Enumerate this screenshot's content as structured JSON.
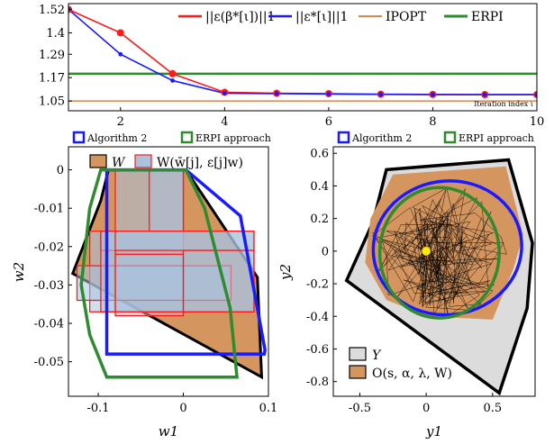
{
  "colors": {
    "red": "#ff1a1a",
    "blue": "#1a1aff",
    "ipopt": "#d9894d",
    "erpi": "#2e8b2e",
    "w_fill": "#d4955f",
    "w_inner_fill": "#a9c3de",
    "y_fill": "#dcdcdc",
    "o_fill": "#d4955f"
  },
  "chart_data": [
    {
      "type": "line",
      "x": [
        1,
        2,
        3,
        4,
        5,
        6,
        7,
        8,
        9,
        10
      ],
      "xticks": [
        "2",
        "4",
        "6",
        "8",
        "10"
      ],
      "yticks": [
        "1.52",
        "1.4",
        "1.29",
        "1.17",
        "1.05"
      ],
      "xlim": [
        1,
        10
      ],
      "ylim": [
        1.0,
        1.55
      ],
      "xlabel": "Iteration index ι",
      "series": [
        {
          "name": "||ε(β*[ι])||1",
          "values": [
            1.52,
            1.4,
            1.19,
            1.095,
            1.09,
            1.088,
            1.085,
            1.084,
            1.083,
            1.083
          ]
        },
        {
          "name": "||ε*[ι]||1",
          "values": [
            1.52,
            1.29,
            1.155,
            1.09,
            1.088,
            1.086,
            1.084,
            1.083,
            1.083,
            1.083
          ]
        },
        {
          "name": "IPOPT",
          "constant": 1.05
        },
        {
          "name": "ERPI",
          "constant": 1.19
        }
      ],
      "legend": [
        "||ε(β*[ι])||1",
        "||ε*[ι]||1",
        "IPOPT",
        "ERPI"
      ]
    },
    {
      "type": "scatter",
      "xlabel": "w1",
      "ylabel": "w2",
      "xlim": [
        -0.135,
        0.1
      ],
      "ylim": [
        -0.059,
        0.006
      ],
      "xticks": [
        "-0.1",
        "0",
        "0.1"
      ],
      "yticks": [
        "0",
        "-0.01",
        "-0.02",
        "-0.03",
        "-0.04",
        "-0.05"
      ],
      "legend_top": [
        "Algorithm 2",
        "ERPI approach"
      ],
      "legend_inner": [
        "W",
        "W(w̄[j], ε[j]w)"
      ],
      "W_polygon": [
        [
          -0.088,
          0.0
        ],
        [
          0.003,
          0.0
        ],
        [
          0.087,
          -0.028
        ],
        [
          0.092,
          -0.054
        ],
        [
          -0.13,
          -0.027
        ],
        [
          -0.097,
          -0.008
        ]
      ],
      "W_boxes": [
        [
          [
            -0.08,
            -0.038
          ],
          [
            0.0,
            0.0
          ]
        ],
        [
          [
            -0.11,
            -0.037
          ],
          [
            0.083,
            -0.016
          ]
        ],
        [
          [
            -0.125,
            -0.034
          ],
          [
            0.056,
            -0.025
          ]
        ],
        [
          [
            -0.08,
            -0.037
          ],
          [
            0.0,
            -0.022
          ]
        ],
        [
          [
            -0.04,
            -0.016
          ],
          [
            0.0,
            0.0
          ]
        ],
        [
          [
            -0.097,
            -0.021
          ],
          [
            0.083,
            -0.016
          ]
        ],
        [
          [
            -0.097,
            -0.037
          ],
          [
            -0.08,
            -0.016
          ]
        ],
        [
          [
            0.0,
            -0.037
          ],
          [
            0.083,
            -0.021
          ]
        ]
      ],
      "alg2_polygon": [
        [
          -0.09,
          0.0
        ],
        [
          0.003,
          0.0
        ],
        [
          0.067,
          -0.012
        ],
        [
          0.096,
          -0.047
        ],
        [
          0.095,
          -0.048
        ],
        [
          -0.09,
          -0.048
        ]
      ],
      "erpi_polygon": [
        [
          -0.097,
          0.0
        ],
        [
          0.003,
          0.0
        ],
        [
          0.025,
          -0.01
        ],
        [
          0.055,
          -0.036
        ],
        [
          0.063,
          -0.054
        ],
        [
          -0.09,
          -0.054
        ],
        [
          -0.11,
          -0.043
        ],
        [
          -0.12,
          -0.03
        ],
        [
          -0.11,
          -0.01
        ]
      ]
    },
    {
      "type": "scatter",
      "xlabel": "y1",
      "ylabel": "y2",
      "xlim": [
        -0.7,
        0.82
      ],
      "ylim": [
        -0.89,
        0.64
      ],
      "xticks": [
        "-0.5",
        "0",
        "0.5"
      ],
      "yticks": [
        "0.6",
        "0.4",
        "0.2",
        "0",
        "-0.2",
        "-0.4",
        "-0.6",
        "-0.8"
      ],
      "legend_top": [
        "Algorithm 2",
        "ERPI approach"
      ],
      "legend_inner": [
        "Y",
        "O(s, α, λ, W)"
      ],
      "Y_polygon": [
        [
          -0.3,
          0.5
        ],
        [
          0.62,
          0.56
        ],
        [
          0.8,
          0.05
        ],
        [
          0.76,
          -0.35
        ],
        [
          0.55,
          -0.87
        ],
        [
          -0.6,
          -0.18
        ],
        [
          -0.4,
          0.18
        ]
      ],
      "O_polygon": [
        [
          -0.25,
          0.47
        ],
        [
          0.6,
          0.52
        ],
        [
          0.73,
          0.1
        ],
        [
          0.66,
          -0.1
        ],
        [
          0.5,
          -0.42
        ],
        [
          0.02,
          -0.4
        ],
        [
          -0.3,
          -0.3
        ],
        [
          -0.46,
          -0.07
        ],
        [
          -0.42,
          0.2
        ]
      ],
      "alg2_curve": {
        "cx": 0.16,
        "cy": 0.02,
        "rx": 0.56,
        "ry": 0.41,
        "angle": 8
      },
      "erpi_curve": {
        "cx": 0.1,
        "cy": -0.01,
        "rx": 0.45,
        "ry": 0.4,
        "angle": 0
      },
      "point": [
        0.0,
        0.0
      ]
    }
  ]
}
